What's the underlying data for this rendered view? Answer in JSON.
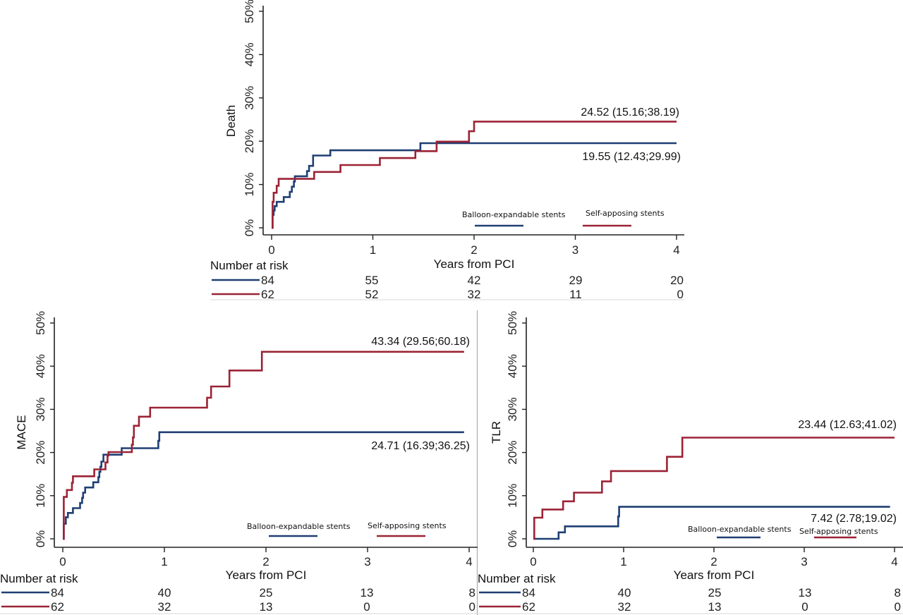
{
  "colors": {
    "balloon": "#1f3f73",
    "self_apposing": "#9b2335"
  },
  "chart_data": [
    {
      "id": "death",
      "type": "line",
      "step": true,
      "title": "",
      "xlabel": "Years from PCI",
      "ylabel": "Death",
      "xlim": [
        0,
        4
      ],
      "ylim": [
        0,
        50
      ],
      "x_ticks": [
        "0",
        "1",
        "2",
        "3",
        "4"
      ],
      "y_ticks": [
        "0%",
        "10%",
        "20%",
        "30%",
        "40%",
        "50%"
      ],
      "grid": false,
      "legend": {
        "placement": "bottom-right",
        "entries": [
          "Balloon-expandable stents",
          "Self-apposing stents"
        ]
      },
      "series": [
        {
          "name": "Balloon-expandable stents",
          "color_key": "balloon",
          "x": [
            0,
            0.01,
            0.02,
            0.03,
            0.05,
            0.12,
            0.18,
            0.2,
            0.22,
            0.23,
            0.35,
            0.37,
            0.41,
            0.58,
            1.47,
            4
          ],
          "y": [
            0,
            3,
            4,
            5,
            6,
            7.1,
            8.3,
            9.5,
            10.7,
            11.9,
            13.1,
            14.3,
            16.7,
            17.9,
            19.55,
            19.55
          ],
          "annotation": "19.55 (12.43;29.99)"
        },
        {
          "name": "Self-apposing stents",
          "color_key": "self_apposing",
          "x": [
            0,
            0.01,
            0.02,
            0.05,
            0.07,
            0.42,
            0.68,
            1.07,
            1.42,
            1.63,
            1.95,
            2.0,
            4
          ],
          "y": [
            0,
            6,
            8.1,
            9.7,
            11.3,
            12.9,
            14.5,
            16.1,
            17.7,
            19.9,
            22.3,
            24.52,
            24.52
          ],
          "annotation": "24.52 (15.16;38.19)"
        }
      ],
      "risk_table": {
        "title": "Number at risk",
        "rows": [
          {
            "color_key": "balloon",
            "values": [
              "84",
              "55",
              "42",
              "29",
              "20"
            ]
          },
          {
            "color_key": "self_apposing",
            "values": [
              "62",
              "52",
              "32",
              "11",
              "0"
            ]
          }
        ]
      }
    },
    {
      "id": "mace",
      "type": "line",
      "step": true,
      "title": "",
      "xlabel": "Years from PCI",
      "ylabel": "MACE",
      "xlim": [
        0,
        4
      ],
      "ylim": [
        0,
        50
      ],
      "x_ticks": [
        "0",
        "1",
        "2",
        "3",
        "4"
      ],
      "y_ticks": [
        "0%",
        "10%",
        "20%",
        "30%",
        "40%",
        "50%"
      ],
      "grid": false,
      "legend": {
        "placement": "bottom-right",
        "entries": [
          "Balloon-expandable stents",
          "Self-apposing stents"
        ]
      },
      "series": [
        {
          "name": "Balloon-expandable stents",
          "color_key": "balloon",
          "x": [
            0,
            0.01,
            0.03,
            0.05,
            0.1,
            0.17,
            0.19,
            0.2,
            0.22,
            0.3,
            0.35,
            0.36,
            0.37,
            0.38,
            0.4,
            0.58,
            0.94,
            0.95,
            3.95
          ],
          "y": [
            0,
            3.5,
            5,
            6,
            7.1,
            8.3,
            9.5,
            10.7,
            11.9,
            13.1,
            14.3,
            15.5,
            16.7,
            17.9,
            19.5,
            21.0,
            22.7,
            24.71,
            24.71
          ],
          "annotation": "24.71 (16.39;36.25)"
        },
        {
          "name": "Self-apposing stents",
          "color_key": "self_apposing",
          "x": [
            0,
            0.01,
            0.04,
            0.09,
            0.1,
            0.31,
            0.42,
            0.44,
            0.45,
            0.68,
            0.69,
            0.7,
            0.75,
            0.86,
            1.42,
            1.46,
            1.64,
            1.96,
            3.95
          ],
          "y": [
            0,
            9.7,
            11.3,
            13,
            14.5,
            16.1,
            17.7,
            19.3,
            20.1,
            21.8,
            23.5,
            26.2,
            28.3,
            30.4,
            32.7,
            35.3,
            39.0,
            43.34,
            43.34
          ],
          "annotation": "43.34 (29.56;60.18)"
        }
      ],
      "risk_table": {
        "title": "Number at risk",
        "rows": [
          {
            "color_key": "balloon",
            "values": [
              "84",
              "40",
              "25",
              "13",
              "8"
            ]
          },
          {
            "color_key": "self_apposing",
            "values": [
              "62",
              "32",
              "13",
              "0",
              "0"
            ]
          }
        ]
      }
    },
    {
      "id": "tlr",
      "type": "line",
      "step": true,
      "title": "",
      "xlabel": "Years from PCI",
      "ylabel": "TLR",
      "xlim": [
        0,
        4
      ],
      "ylim": [
        0,
        50
      ],
      "x_ticks": [
        "0",
        "1",
        "2",
        "3",
        "4"
      ],
      "y_ticks": [
        "0%",
        "10%",
        "20%",
        "30%",
        "40%",
        "50%"
      ],
      "grid": false,
      "legend": {
        "placement": "bottom-right",
        "entries": [
          "Balloon-expandable stents",
          "Self-apposing stents"
        ]
      },
      "series": [
        {
          "name": "Balloon-expandable stents",
          "color_key": "balloon",
          "x": [
            0,
            0.28,
            0.35,
            0.94,
            0.95,
            3.95
          ],
          "y": [
            0,
            1.5,
            2.9,
            5.2,
            7.42,
            7.42
          ],
          "annotation": "7.42 (2.78;19.02)"
        },
        {
          "name": "Self-apposing stents",
          "color_key": "self_apposing",
          "x": [
            0,
            0.01,
            0.1,
            0.33,
            0.45,
            0.76,
            0.86,
            1.48,
            1.65,
            4
          ],
          "y": [
            0,
            4.9,
            6.8,
            8.7,
            10.7,
            13.3,
            15.7,
            19.0,
            23.44,
            23.44
          ],
          "annotation": "23.44 (12.63;41.02)"
        }
      ],
      "risk_table": {
        "title": "Number at risk",
        "rows": [
          {
            "color_key": "balloon",
            "values": [
              "84",
              "40",
              "25",
              "13",
              "8"
            ]
          },
          {
            "color_key": "self_apposing",
            "values": [
              "62",
              "32",
              "13",
              "0",
              "0"
            ]
          }
        ]
      }
    }
  ]
}
